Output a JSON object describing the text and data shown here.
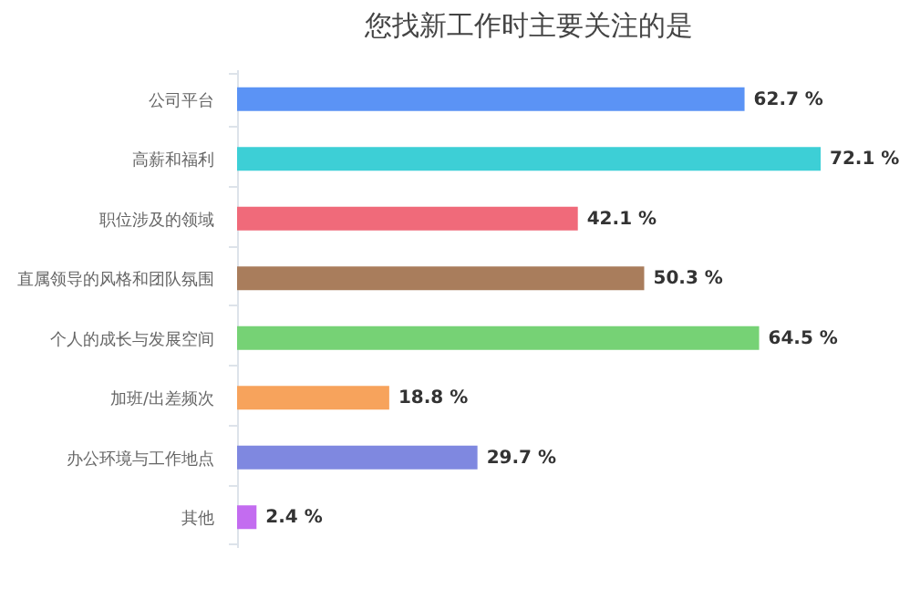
{
  "chart_data": {
    "type": "bar",
    "orientation": "horizontal",
    "title": "您找新工作时主要关注的是",
    "categories": [
      "公司平台",
      "高薪和福利",
      "职位涉及的领域",
      "直属领导的风格和团队氛围",
      "个人的成长与发展空间",
      "加班/出差频次",
      "办公环境与工作地点",
      "其他"
    ],
    "values": [
      62.7,
      72.1,
      42.1,
      50.3,
      64.5,
      18.8,
      29.7,
      2.4
    ],
    "colors": [
      "#5b93f5",
      "#3dcfd6",
      "#f06a7a",
      "#a97d5c",
      "#76d275",
      "#f7a35c",
      "#7f88e0",
      "#c36cf0"
    ],
    "value_labels": [
      "62.7 %",
      "72.1 %",
      "42.1 %",
      "50.3 %",
      "64.5 %",
      "18.8 %",
      "29.7 %",
      "2.4 %"
    ]
  }
}
